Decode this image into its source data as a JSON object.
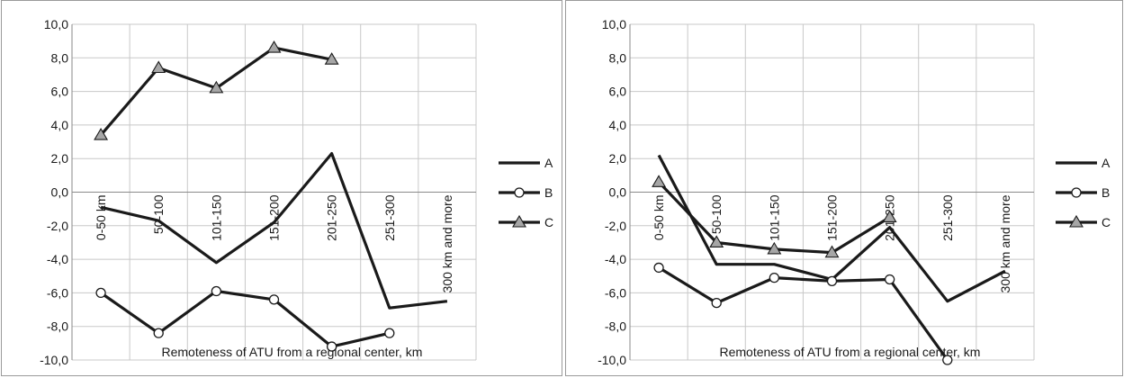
{
  "chart_data": [
    {
      "type": "line",
      "categories": [
        "0-50 km",
        "50-100",
        "101-150",
        "151-200",
        "201-250",
        "251-300",
        "300 km and more"
      ],
      "series": [
        {
          "name": "A",
          "marker": "none",
          "values": [
            -0.9,
            -1.7,
            -4.2,
            -1.8,
            2.3,
            -6.9,
            -6.5
          ]
        },
        {
          "name": "B",
          "marker": "circle",
          "values": [
            -6.0,
            -8.4,
            -5.9,
            -6.4,
            -9.2,
            -8.4,
            null
          ]
        },
        {
          "name": "C",
          "marker": "triangle",
          "values": [
            3.4,
            7.4,
            6.2,
            8.6,
            7.9,
            null,
            null
          ]
        }
      ],
      "xlabel": "Remoteness of ATU from a regional center, km",
      "ylim": [
        -10,
        10
      ],
      "ytick_step": 2,
      "yticks": [
        "10,0",
        "8,0",
        "6,0",
        "4,0",
        "2,0",
        "0,0",
        "-2,0",
        "-4,0",
        "-6,0",
        "-8,0",
        "-10,0"
      ],
      "grid": true,
      "legend": "right",
      "colors": {
        "line": "#1a1a1a",
        "grid": "#c8c8c8",
        "triangle_fill": "#a6a6a6",
        "circle_fill": "#ffffff"
      }
    },
    {
      "type": "line",
      "categories": [
        "0-50 km",
        "50-100",
        "101-150",
        "151-200",
        "201-250",
        "251-300",
        "300 km and more"
      ],
      "series": [
        {
          "name": "A",
          "marker": "none",
          "values": [
            2.2,
            -4.3,
            -4.3,
            -5.2,
            -2.1,
            -6.5,
            -4.7
          ]
        },
        {
          "name": "B",
          "marker": "circle",
          "values": [
            -4.5,
            -6.6,
            -5.1,
            -5.3,
            -5.2,
            -10.0,
            null
          ]
        },
        {
          "name": "C",
          "marker": "triangle",
          "values": [
            0.6,
            -3.0,
            -3.4,
            -3.6,
            -1.5,
            null,
            null
          ]
        }
      ],
      "xlabel": "Remoteness of ATU from a regional center, km",
      "ylim": [
        -10,
        10
      ],
      "ytick_step": 2,
      "yticks": [
        "10,0",
        "8,0",
        "6,0",
        "4,0",
        "2,0",
        "0,0",
        "-2,0",
        "-4,0",
        "-6,0",
        "-8,0",
        "-10,0"
      ],
      "grid": true,
      "legend": "right",
      "colors": {
        "line": "#1a1a1a",
        "grid": "#c8c8c8",
        "triangle_fill": "#a6a6a6",
        "circle_fill": "#ffffff"
      }
    }
  ]
}
